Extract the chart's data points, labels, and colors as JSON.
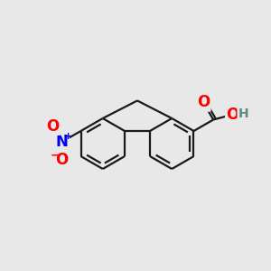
{
  "bg_color": "#e8e8e8",
  "bond_color": "#1a1a1a",
  "bond_width": 1.6,
  "atom_colors": {
    "O": "#ff0000",
    "H": "#5a8a8a",
    "N": "#0000ee",
    "O_minus": "#ff0000"
  },
  "font_size_atom": 12,
  "font_size_H": 10,
  "font_size_super": 8
}
